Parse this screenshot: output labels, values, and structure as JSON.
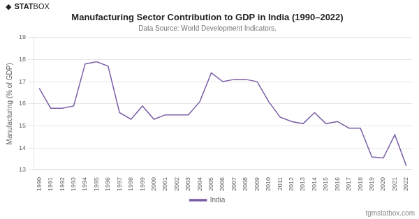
{
  "chart_data": {
    "type": "line",
    "title": "Manufacturing Sector Contribution to GDP in India (1990–2022)",
    "subtitle": "Data Source: World Development Indicators.",
    "y_label": "Manufacturing (% of GDP)",
    "annotations": [
      "◆",
      "STAT",
      "BOX",
      "tgmstatbox.com"
    ],
    "x": [
      1990,
      1991,
      1992,
      1993,
      1994,
      1995,
      1996,
      1997,
      1998,
      1999,
      2000,
      2001,
      2002,
      2003,
      2004,
      2005,
      2006,
      2007,
      2008,
      2009,
      2010,
      2011,
      2012,
      2013,
      2014,
      2015,
      2016,
      2017,
      2018,
      2019,
      2020,
      2021,
      2022
    ],
    "series": [
      {
        "name": "India",
        "color": "#7b5ea7",
        "values": [
          16.7,
          15.8,
          15.8,
          15.9,
          17.8,
          17.9,
          17.7,
          15.6,
          15.3,
          15.9,
          15.3,
          15.5,
          15.5,
          15.5,
          16.1,
          17.4,
          17.0,
          17.1,
          17.1,
          17.0,
          16.1,
          15.4,
          15.2,
          15.1,
          15.6,
          15.1,
          15.2,
          14.9,
          14.9,
          13.6,
          13.55,
          14.6,
          13.2
        ]
      }
    ],
    "xlim": [
      1989.5,
      2022.5
    ],
    "xticks": [
      1990,
      1991,
      1992,
      1993,
      1994,
      1995,
      1996,
      1997,
      1998,
      1999,
      2000,
      2001,
      2002,
      2003,
      2004,
      2005,
      2006,
      2007,
      2008,
      2009,
      2010,
      2011,
      2012,
      2013,
      2014,
      2015,
      2016,
      2017,
      2018,
      2019,
      2020,
      2021,
      2022
    ],
    "ylim": [
      13,
      19
    ],
    "yticks": [
      13,
      14,
      15,
      16,
      17,
      18,
      19
    ],
    "grid": true,
    "legend": "bottom"
  }
}
